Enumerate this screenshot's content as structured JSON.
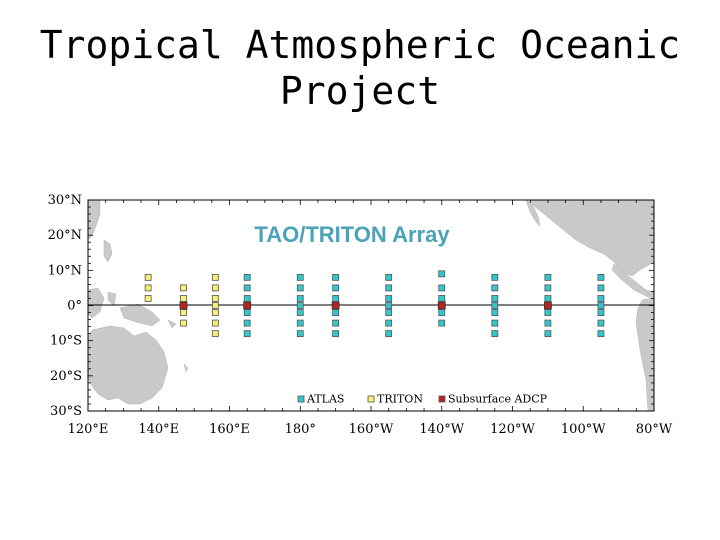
{
  "title": {
    "line1": "Tropical Atmospheric Oceanic",
    "line2": "Project"
  },
  "map": {
    "title": "TAO/TRITON Array",
    "title_color": "#4aa3b8",
    "ocean_color": "#ffffff",
    "land_color": "#c9c9c9",
    "lat_labels": [
      "30°N",
      "20°N",
      "10°N",
      "0°",
      "10°S",
      "20°S",
      "30°S"
    ],
    "lon_labels": [
      "120°E",
      "140°E",
      "160°E",
      "180°",
      "160°W",
      "140°W",
      "120°W",
      "100°W",
      "80°W"
    ],
    "legend": [
      {
        "label": "ATLAS",
        "color": "#33c6cc"
      },
      {
        "label": "TRITON",
        "color": "#f5ee7a"
      },
      {
        "label": "Subsurface ADCP",
        "color": "#b3261e"
      }
    ],
    "buoy_columns": [
      {
        "lon": 137,
        "type": "TRITON",
        "lats": [
          8,
          5,
          2
        ]
      },
      {
        "lon": 147,
        "type": "TRITON",
        "lats": [
          5,
          2,
          0,
          -2,
          -5
        ]
      },
      {
        "lon": 156,
        "type": "TRITON",
        "lats": [
          8,
          5,
          2,
          0,
          -2,
          -5,
          -8
        ]
      },
      {
        "lon": 165,
        "type": "ATLAS",
        "lats": [
          8,
          5,
          2,
          0,
          -2,
          -5,
          -8
        ]
      },
      {
        "lon": 180,
        "type": "ATLAS",
        "lats": [
          8,
          5,
          2,
          0,
          -2,
          -5,
          -8
        ]
      },
      {
        "lon": 190,
        "type": "ATLAS",
        "lats": [
          8,
          5,
          2,
          0,
          -2,
          -5,
          -8
        ]
      },
      {
        "lon": 205,
        "type": "ATLAS",
        "lats": [
          8,
          5,
          2,
          0,
          -2,
          -5,
          -8
        ]
      },
      {
        "lon": 220,
        "type": "ATLAS",
        "lats": [
          9,
          5,
          2,
          0,
          -2,
          -5
        ]
      },
      {
        "lon": 235,
        "type": "ATLAS",
        "lats": [
          8,
          5,
          2,
          0,
          -2,
          -5,
          -8
        ]
      },
      {
        "lon": 250,
        "type": "ATLAS",
        "lats": [
          8,
          5,
          2,
          0,
          -2,
          -5,
          -8
        ]
      },
      {
        "lon": 265,
        "type": "ATLAS",
        "lats": [
          8,
          5,
          2,
          0,
          -2,
          -5,
          -8
        ]
      }
    ],
    "adcp_lons": [
      147,
      165,
      190,
      220,
      250
    ]
  }
}
